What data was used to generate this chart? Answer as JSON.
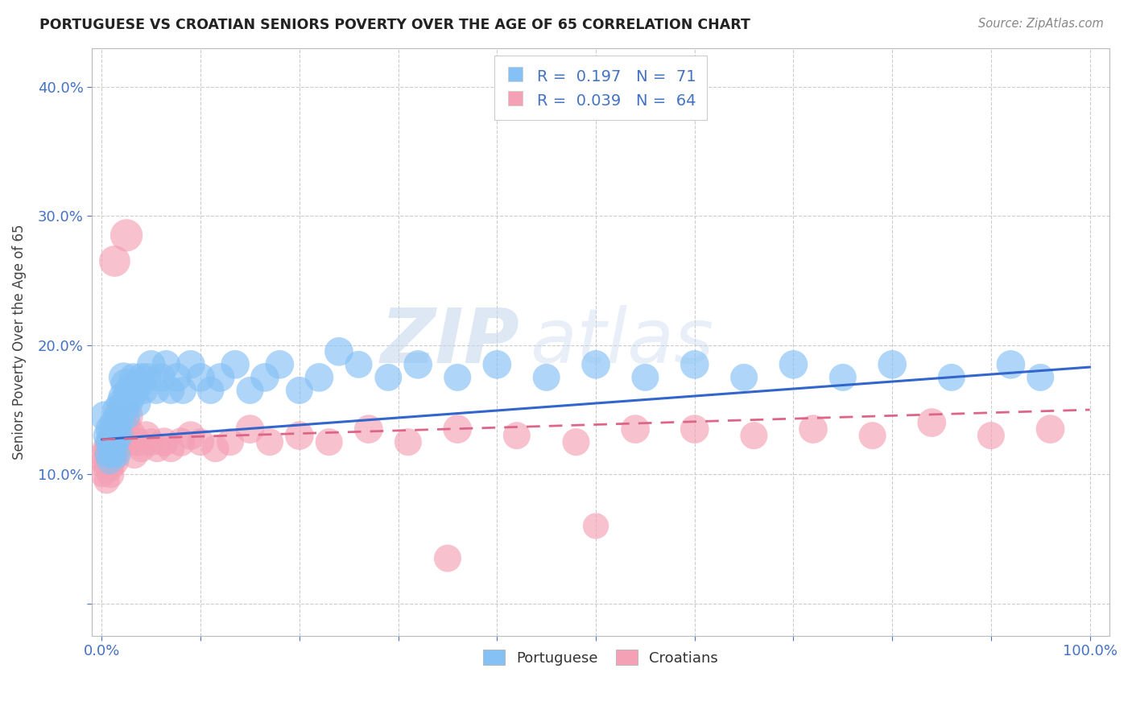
{
  "title": "PORTUGUESE VS CROATIAN SENIORS POVERTY OVER THE AGE OF 65 CORRELATION CHART",
  "source": "Source: ZipAtlas.com",
  "ylabel": "Seniors Poverty Over the Age of 65",
  "xlabel": "",
  "xlim": [
    -0.01,
    1.02
  ],
  "ylim": [
    -0.025,
    0.43
  ],
  "xticks": [
    0.0,
    0.1,
    0.2,
    0.3,
    0.4,
    0.5,
    0.6,
    0.7,
    0.8,
    0.9,
    1.0
  ],
  "xticklabels": [
    "0.0%",
    "",
    "",
    "",
    "",
    "",
    "",
    "",
    "",
    "",
    "100.0%"
  ],
  "yticks": [
    0.0,
    0.1,
    0.2,
    0.3,
    0.4
  ],
  "yticklabels": [
    "",
    "10.0%",
    "20.0%",
    "30.0%",
    "40.0%"
  ],
  "portuguese_color": "#85C1F5",
  "croatian_color": "#F4A0B5",
  "portuguese_line_color": "#3366CC",
  "croatian_line_color": "#DD6688",
  "watermark_zip": "ZIP",
  "watermark_atlas": "atlas",
  "legend_R_portuguese": "0.197",
  "legend_N_portuguese": "71",
  "legend_R_croatian": "0.039",
  "legend_N_croatian": "64",
  "port_trend_x0": 0.0,
  "port_trend_y0": 0.127,
  "port_trend_x1": 1.0,
  "port_trend_y1": 0.183,
  "cro_trend_x0": 0.0,
  "cro_trend_y0": 0.127,
  "cro_trend_x1": 1.0,
  "cro_trend_y1": 0.15,
  "portuguese_points_x": [
    0.003,
    0.005,
    0.006,
    0.007,
    0.008,
    0.008,
    0.009,
    0.01,
    0.01,
    0.011,
    0.012,
    0.012,
    0.013,
    0.014,
    0.015,
    0.015,
    0.016,
    0.016,
    0.017,
    0.018,
    0.019,
    0.02,
    0.021,
    0.022,
    0.023,
    0.024,
    0.025,
    0.027,
    0.028,
    0.03,
    0.032,
    0.034,
    0.036,
    0.038,
    0.04,
    0.043,
    0.046,
    0.05,
    0.055,
    0.06,
    0.065,
    0.07,
    0.076,
    0.082,
    0.09,
    0.1,
    0.11,
    0.12,
    0.135,
    0.15,
    0.165,
    0.18,
    0.2,
    0.22,
    0.24,
    0.26,
    0.29,
    0.32,
    0.36,
    0.4,
    0.45,
    0.5,
    0.55,
    0.6,
    0.65,
    0.7,
    0.75,
    0.8,
    0.86,
    0.92,
    0.95
  ],
  "portuguese_points_y": [
    0.145,
    0.13,
    0.115,
    0.125,
    0.11,
    0.135,
    0.12,
    0.115,
    0.13,
    0.125,
    0.14,
    0.115,
    0.135,
    0.125,
    0.15,
    0.13,
    0.145,
    0.115,
    0.14,
    0.13,
    0.155,
    0.145,
    0.16,
    0.175,
    0.155,
    0.17,
    0.145,
    0.165,
    0.155,
    0.16,
    0.175,
    0.165,
    0.155,
    0.17,
    0.175,
    0.165,
    0.175,
    0.185,
    0.165,
    0.175,
    0.185,
    0.165,
    0.175,
    0.165,
    0.185,
    0.175,
    0.165,
    0.175,
    0.185,
    0.165,
    0.175,
    0.185,
    0.165,
    0.175,
    0.195,
    0.185,
    0.175,
    0.185,
    0.175,
    0.185,
    0.175,
    0.185,
    0.175,
    0.185,
    0.175,
    0.185,
    0.175,
    0.185,
    0.175,
    0.185,
    0.175
  ],
  "portuguese_sizes": [
    60,
    50,
    45,
    50,
    45,
    55,
    50,
    45,
    55,
    50,
    55,
    45,
    55,
    50,
    55,
    50,
    55,
    45,
    55,
    50,
    55,
    50,
    55,
    60,
    55,
    60,
    50,
    55,
    50,
    55,
    55,
    50,
    50,
    55,
    55,
    50,
    55,
    55,
    50,
    55,
    55,
    50,
    55,
    50,
    55,
    55,
    50,
    55,
    55,
    50,
    55,
    55,
    50,
    55,
    55,
    50,
    50,
    55,
    50,
    55,
    50,
    55,
    50,
    55,
    50,
    55,
    50,
    55,
    50,
    55,
    50
  ],
  "croatian_points_x": [
    0.001,
    0.002,
    0.003,
    0.004,
    0.005,
    0.005,
    0.006,
    0.007,
    0.008,
    0.008,
    0.009,
    0.01,
    0.01,
    0.011,
    0.012,
    0.013,
    0.014,
    0.015,
    0.016,
    0.017,
    0.018,
    0.019,
    0.02,
    0.021,
    0.022,
    0.023,
    0.024,
    0.026,
    0.028,
    0.03,
    0.033,
    0.036,
    0.04,
    0.045,
    0.05,
    0.056,
    0.063,
    0.07,
    0.08,
    0.09,
    0.1,
    0.115,
    0.13,
    0.15,
    0.17,
    0.2,
    0.23,
    0.27,
    0.31,
    0.36,
    0.42,
    0.48,
    0.54,
    0.6,
    0.66,
    0.72,
    0.78,
    0.84,
    0.9,
    0.96,
    0.013,
    0.025,
    0.35,
    0.5
  ],
  "croatian_points_y": [
    0.1,
    0.115,
    0.11,
    0.105,
    0.12,
    0.095,
    0.11,
    0.12,
    0.105,
    0.115,
    0.1,
    0.12,
    0.11,
    0.125,
    0.115,
    0.11,
    0.12,
    0.135,
    0.125,
    0.14,
    0.13,
    0.145,
    0.13,
    0.15,
    0.135,
    0.125,
    0.14,
    0.145,
    0.125,
    0.13,
    0.115,
    0.125,
    0.12,
    0.13,
    0.125,
    0.12,
    0.125,
    0.12,
    0.125,
    0.13,
    0.125,
    0.12,
    0.125,
    0.135,
    0.125,
    0.13,
    0.125,
    0.135,
    0.125,
    0.135,
    0.13,
    0.125,
    0.135,
    0.135,
    0.13,
    0.135,
    0.13,
    0.14,
    0.13,
    0.135,
    0.265,
    0.285,
    0.035,
    0.06
  ],
  "croatian_sizes": [
    45,
    50,
    50,
    45,
    55,
    45,
    50,
    55,
    50,
    55,
    50,
    60,
    55,
    60,
    55,
    55,
    60,
    65,
    60,
    65,
    60,
    65,
    60,
    70,
    65,
    55,
    60,
    65,
    55,
    60,
    50,
    55,
    50,
    55,
    50,
    50,
    55,
    50,
    55,
    55,
    50,
    50,
    50,
    55,
    50,
    55,
    50,
    55,
    50,
    55,
    50,
    50,
    55,
    55,
    50,
    55,
    50,
    55,
    50,
    55,
    65,
    70,
    50,
    45
  ]
}
